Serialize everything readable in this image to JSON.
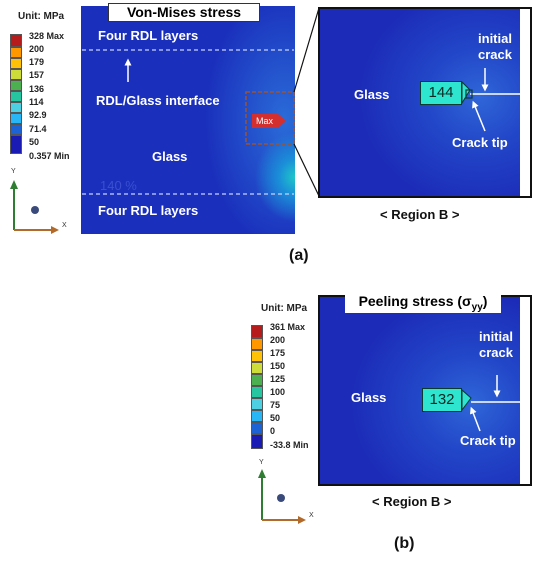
{
  "panel_a": {
    "legend": {
      "unit": "Unit: MPa",
      "max": "328 Max",
      "values": [
        "200",
        "179",
        "157",
        "136",
        "114",
        "92.9",
        "71.4",
        "50"
      ],
      "min": "0.357 Min",
      "colors": [
        "#b71c1c",
        "#ff9800",
        "#ffc107",
        "#cddc39",
        "#4caf50",
        "#26c6a0",
        "#4dd0e1",
        "#29b6f6",
        "#1e63d6",
        "#1a1ab5"
      ]
    },
    "main": {
      "title": "Von-Mises stress",
      "top_label": "Four RDL layers",
      "interface_label": "RDL/Glass interface",
      "glass_label": "Glass",
      "bottom_label": "Four RDL layers",
      "max_marker": "Max",
      "faint_value": "140 %"
    },
    "zoom": {
      "glass_label": "Glass",
      "probe_value": "144",
      "crack_label": "initial crack",
      "tip_label": "Crack tip",
      "region": "< Region B >"
    },
    "sublabel": "(a)",
    "axes": {
      "y": "Y",
      "x": "X"
    }
  },
  "panel_b": {
    "legend": {
      "unit": "Unit: MPa",
      "max": "361 Max",
      "values": [
        "200",
        "175",
        "150",
        "125",
        "100",
        "75",
        "50",
        "0"
      ],
      "min": "-33.8 Min",
      "colors": [
        "#b71c1c",
        "#ff9800",
        "#ffc107",
        "#cddc39",
        "#4caf50",
        "#26c6a0",
        "#4dd0e1",
        "#29b6f6",
        "#1e63d6",
        "#1a1ab5"
      ]
    },
    "zoom": {
      "title": "Peeling stress (σ",
      "title_sub": "yy",
      "title_end": ")",
      "glass_label": "Glass",
      "probe_value": "132",
      "crack_label": "initial crack",
      "tip_label": "Crack tip",
      "region": "< Region B >"
    },
    "sublabel": "(b)",
    "axes": {
      "y": "Y",
      "x": "X"
    }
  }
}
